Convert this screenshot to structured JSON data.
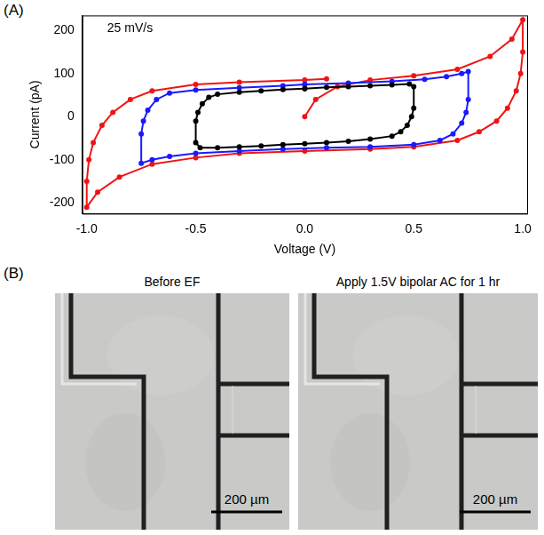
{
  "chart_data": {
    "type": "line",
    "panel_label": "(A)",
    "annotations": [
      "25 mV/s"
    ],
    "x_label": "Voltage (V)",
    "y_label": "Current (pA)",
    "xlim": [
      -1.02,
      1.02
    ],
    "xticks": [
      {
        "value": -1.0,
        "label": "-1.0"
      },
      {
        "value": -0.5,
        "label": "-0.5"
      },
      {
        "value": 0,
        "label": "0.0"
      },
      {
        "value": 0.5,
        "label": "0.5"
      },
      {
        "value": 1.0,
        "label": "1.0"
      }
    ],
    "ylim": [
      -225,
      235
    ],
    "yticks": [
      -200,
      -100,
      0,
      100,
      200
    ],
    "grid": false,
    "series": [
      {
        "color": "#000000",
        "marker": "circle",
        "line_style": "solid",
        "x": [
          0,
          0.1,
          0.2,
          0.3,
          0.4,
          0.48,
          0.5,
          0.5,
          0.49,
          0.47,
          0.44,
          0.4,
          0.3,
          0.2,
          0.1,
          0,
          -0.1,
          -0.2,
          -0.3,
          -0.4,
          -0.48,
          -0.5,
          -0.5,
          -0.49,
          -0.47,
          -0.44,
          -0.4,
          -0.3,
          -0.2,
          -0.1,
          0
        ],
        "values": [
          65,
          68,
          70,
          72,
          74,
          76,
          70,
          20,
          0,
          -20,
          -35,
          -45,
          -52,
          -57,
          -60,
          -63,
          -65,
          -68,
          -70,
          -72,
          -72,
          -60,
          -10,
          10,
          30,
          45,
          52,
          57,
          60,
          63,
          65
        ]
      },
      {
        "color": "#1a1aff",
        "marker": "circle",
        "line_style": "solid",
        "x": [
          0,
          0.2,
          0.4,
          0.55,
          0.65,
          0.72,
          0.75,
          0.75,
          0.74,
          0.72,
          0.68,
          0.62,
          0.5,
          0.3,
          0.1,
          -0.1,
          -0.3,
          -0.5,
          -0.62,
          -0.7,
          -0.75,
          -0.75,
          -0.74,
          -0.72,
          -0.68,
          -0.62,
          -0.5,
          -0.3,
          -0.1,
          0
        ],
        "values": [
          75,
          78,
          82,
          87,
          93,
          100,
          105,
          40,
          10,
          -15,
          -40,
          -55,
          -65,
          -70,
          -72,
          -75,
          -80,
          -85,
          -92,
          -100,
          -108,
          -40,
          -10,
          15,
          40,
          55,
          62,
          67,
          72,
          75
        ]
      },
      {
        "color": "#f01414",
        "marker": "circle",
        "line_style": "solid",
        "x": [
          0,
          0.05,
          0.15,
          0.3,
          0.5,
          0.7,
          0.85,
          0.95,
          1.0,
          1.0,
          0.99,
          0.97,
          0.93,
          0.88,
          0.8,
          0.7,
          0.5,
          0.3,
          0,
          -0.3,
          -0.5,
          -0.7,
          -0.85,
          -0.95,
          -1.0,
          -1.0,
          -0.99,
          -0.97,
          -0.93,
          -0.88,
          -0.8,
          -0.7,
          -0.5,
          -0.3,
          0,
          0.1
        ],
        "values": [
          0,
          40,
          70,
          85,
          95,
          110,
          140,
          180,
          225,
          150,
          100,
          60,
          20,
          -10,
          -35,
          -55,
          -70,
          -75,
          -80,
          -85,
          -95,
          -110,
          -140,
          -175,
          -210,
          -150,
          -100,
          -60,
          -20,
          10,
          40,
          60,
          75,
          80,
          85,
          88
        ]
      }
    ]
  },
  "figure_b": {
    "panel_label": "(B)",
    "images": [
      {
        "title": "Before EF",
        "scale_bar": "200 µm"
      },
      {
        "title": "Apply 1.5V bipolar AC for 1 hr",
        "scale_bar": "200 µm"
      }
    ]
  }
}
